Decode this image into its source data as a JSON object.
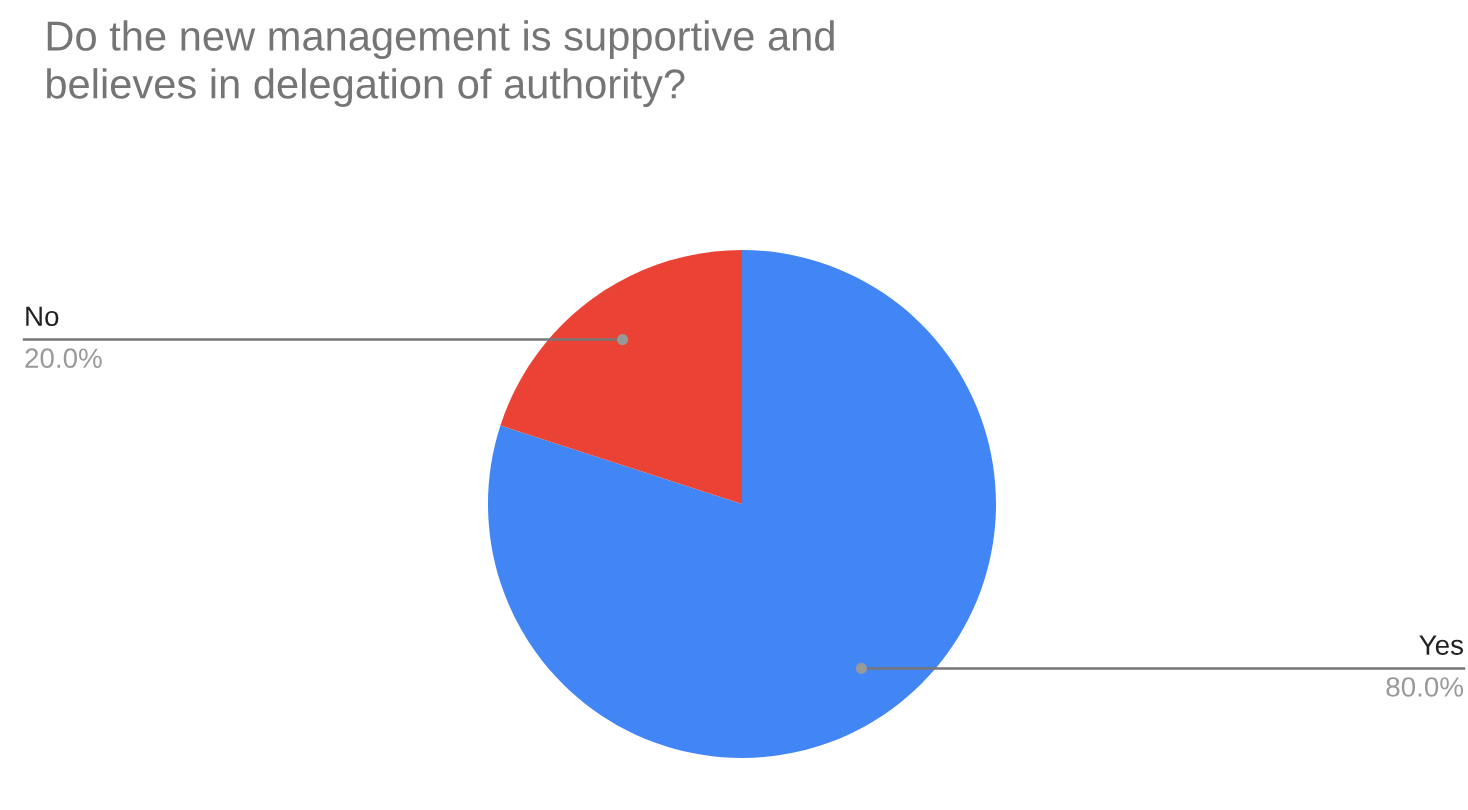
{
  "chart_data": {
    "type": "pie",
    "title": "Do the new management is supportive and believes in delegation of authority?",
    "categories": [
      "Yes",
      "No"
    ],
    "values": [
      80,
      20
    ],
    "value_labels": [
      "80.0%",
      "20.0%"
    ],
    "colors": [
      "#4285f4",
      "#ea4335"
    ],
    "legend": false
  }
}
